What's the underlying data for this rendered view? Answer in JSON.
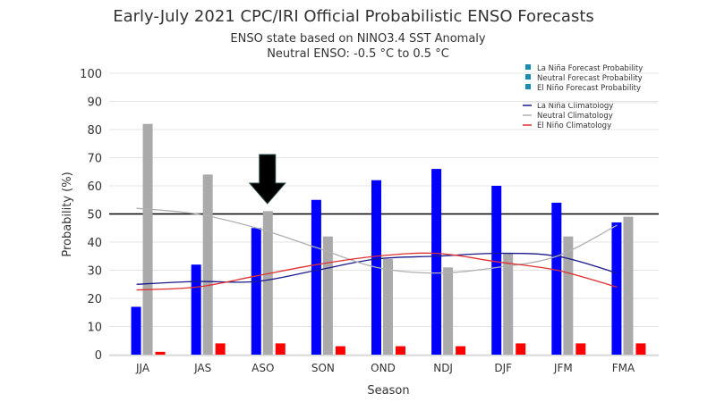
{
  "chart_data": {
    "type": "bar",
    "title": "Early-July 2021 CPC/IRI Official Probabilistic ENSO Forecasts",
    "subtitle_1": "ENSO state based on NINO3.4 SST Anomaly",
    "subtitle_2": "Neutral ENSO: -0.5 °C to 0.5 °C",
    "xlabel": "Season",
    "ylabel": "Probability (%)",
    "ylim": [
      0,
      100
    ],
    "yticks": [
      "0",
      "10",
      "20",
      "30",
      "40",
      "50",
      "60",
      "70",
      "80",
      "90",
      "100"
    ],
    "categories": [
      "JJA",
      "JAS",
      "ASO",
      "SON",
      "OND",
      "NDJ",
      "DJF",
      "JFM",
      "FMA"
    ],
    "reference_line": 50,
    "highlight_category": "ASO",
    "grid": true,
    "legend_position": "top-right",
    "series": [
      {
        "name": "La Niña Forecast Probability",
        "kind": "bar",
        "color": "#0000ff",
        "values": [
          17,
          32,
          45,
          55,
          62,
          66,
          60,
          54,
          47
        ]
      },
      {
        "name": "Neutral Forecast Probability",
        "kind": "bar",
        "color": "#aaaaaa",
        "values": [
          82,
          64,
          51,
          42,
          34,
          31,
          36,
          42,
          49
        ]
      },
      {
        "name": "El Niño Forecast Probability",
        "kind": "bar",
        "color": "#ff0000",
        "values": [
          1,
          4,
          4,
          3,
          3,
          3,
          4,
          4,
          4
        ]
      },
      {
        "name": "La Niña Climatology",
        "kind": "line",
        "color": "#1a1a8c",
        "values": [
          25,
          26,
          26,
          30,
          34,
          35,
          36,
          35,
          29
        ]
      },
      {
        "name": "Neutral Climatology",
        "kind": "line",
        "color": "#b0b0b0",
        "values": [
          52,
          50,
          45,
          38,
          31,
          29,
          31,
          35,
          46
        ]
      },
      {
        "name": "El Niño Climatology",
        "kind": "line",
        "color": "#e03030",
        "values": [
          23,
          24,
          28,
          32,
          35,
          36,
          33,
          30,
          24
        ]
      }
    ]
  }
}
